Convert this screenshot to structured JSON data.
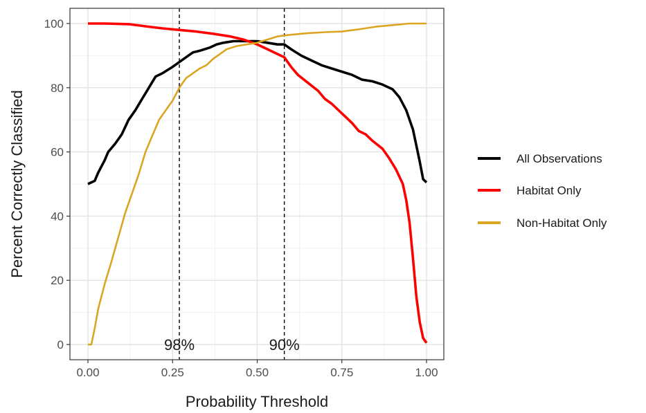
{
  "chart_data": {
    "type": "line",
    "title": "",
    "xlabel": "Probability Threshold",
    "ylabel": "Percent Correctly Classified",
    "xlim": [
      0,
      1
    ],
    "ylim": [
      0,
      100
    ],
    "x_ticks": [
      0,
      0.25,
      0.5,
      0.75,
      1
    ],
    "x_tick_labels": [
      "0.00",
      "0.25",
      "0.50",
      "0.75",
      "1.00"
    ],
    "y_ticks": [
      0,
      20,
      40,
      60,
      80,
      100
    ],
    "y_tick_labels": [
      "0",
      "20",
      "40",
      "60",
      "80",
      "100"
    ],
    "grid": true,
    "legend_position": "right",
    "series": [
      {
        "name": "All Observations",
        "color": "#000000",
        "points": [
          [
            0.0,
            50
          ],
          [
            0.02,
            51
          ],
          [
            0.03,
            53.5
          ],
          [
            0.05,
            57.5
          ],
          [
            0.06,
            60
          ],
          [
            0.08,
            62.5
          ],
          [
            0.1,
            65.5
          ],
          [
            0.12,
            70
          ],
          [
            0.14,
            73
          ],
          [
            0.16,
            76.5
          ],
          [
            0.18,
            80
          ],
          [
            0.2,
            83.5
          ],
          [
            0.22,
            84.5
          ],
          [
            0.25,
            86.5
          ],
          [
            0.27,
            88
          ],
          [
            0.29,
            89.5
          ],
          [
            0.31,
            91
          ],
          [
            0.33,
            91.5
          ],
          [
            0.36,
            92.5
          ],
          [
            0.38,
            93.5
          ],
          [
            0.4,
            94
          ],
          [
            0.43,
            94.5
          ],
          [
            0.46,
            94.5
          ],
          [
            0.5,
            94.5
          ],
          [
            0.53,
            94
          ],
          [
            0.56,
            93.5
          ],
          [
            0.58,
            93.5
          ],
          [
            0.6,
            92
          ],
          [
            0.63,
            90
          ],
          [
            0.66,
            88.5
          ],
          [
            0.69,
            87
          ],
          [
            0.72,
            86
          ],
          [
            0.75,
            85
          ],
          [
            0.78,
            84
          ],
          [
            0.81,
            82.5
          ],
          [
            0.84,
            82
          ],
          [
            0.87,
            81
          ],
          [
            0.9,
            79.5
          ],
          [
            0.92,
            77
          ],
          [
            0.94,
            73
          ],
          [
            0.96,
            67
          ],
          [
            0.97,
            62
          ],
          [
            0.98,
            57
          ],
          [
            0.99,
            51.5
          ],
          [
            1.0,
            50.5
          ]
        ]
      },
      {
        "name": "Habitat Only",
        "color": "#ff0000",
        "points": [
          [
            0.0,
            100
          ],
          [
            0.05,
            100
          ],
          [
            0.12,
            99.8
          ],
          [
            0.18,
            99
          ],
          [
            0.22,
            98.5
          ],
          [
            0.27,
            98
          ],
          [
            0.32,
            97.5
          ],
          [
            0.37,
            96.8
          ],
          [
            0.42,
            96
          ],
          [
            0.46,
            95
          ],
          [
            0.5,
            93.5
          ],
          [
            0.53,
            92
          ],
          [
            0.56,
            90.5
          ],
          [
            0.58,
            89.5
          ],
          [
            0.6,
            86.5
          ],
          [
            0.62,
            84
          ],
          [
            0.65,
            81.5
          ],
          [
            0.68,
            79
          ],
          [
            0.7,
            76.5
          ],
          [
            0.72,
            75
          ],
          [
            0.75,
            72
          ],
          [
            0.78,
            69
          ],
          [
            0.8,
            66.5
          ],
          [
            0.82,
            65.5
          ],
          [
            0.84,
            63.5
          ],
          [
            0.87,
            61
          ],
          [
            0.89,
            58
          ],
          [
            0.91,
            54.5
          ],
          [
            0.93,
            50
          ],
          [
            0.94,
            45
          ],
          [
            0.95,
            38
          ],
          [
            0.96,
            27
          ],
          [
            0.97,
            15
          ],
          [
            0.98,
            7
          ],
          [
            0.99,
            2
          ],
          [
            1.0,
            0.5
          ]
        ]
      },
      {
        "name": "Non-Habitat Only",
        "color": "#daa520",
        "points": [
          [
            0.0,
            0
          ],
          [
            0.01,
            0
          ],
          [
            0.02,
            5
          ],
          [
            0.03,
            11
          ],
          [
            0.05,
            19
          ],
          [
            0.07,
            26
          ],
          [
            0.09,
            33.5
          ],
          [
            0.11,
            41
          ],
          [
            0.13,
            47
          ],
          [
            0.15,
            53
          ],
          [
            0.17,
            60
          ],
          [
            0.19,
            65
          ],
          [
            0.21,
            70
          ],
          [
            0.23,
            73
          ],
          [
            0.25,
            76
          ],
          [
            0.27,
            80
          ],
          [
            0.29,
            83
          ],
          [
            0.31,
            84.5
          ],
          [
            0.33,
            86
          ],
          [
            0.35,
            87
          ],
          [
            0.37,
            89
          ],
          [
            0.39,
            90.5
          ],
          [
            0.41,
            92
          ],
          [
            0.44,
            93
          ],
          [
            0.47,
            93.5
          ],
          [
            0.5,
            94
          ],
          [
            0.53,
            95
          ],
          [
            0.56,
            96
          ],
          [
            0.58,
            96.3
          ],
          [
            0.6,
            96.5
          ],
          [
            0.65,
            97
          ],
          [
            0.7,
            97.3
          ],
          [
            0.75,
            97.5
          ],
          [
            0.8,
            98.2
          ],
          [
            0.85,
            99
          ],
          [
            0.9,
            99.5
          ],
          [
            0.95,
            100
          ],
          [
            1.0,
            100
          ]
        ]
      }
    ],
    "vlines": [
      {
        "x": 0.27,
        "label": "98%"
      },
      {
        "x": 0.58,
        "label": "90%"
      }
    ]
  }
}
